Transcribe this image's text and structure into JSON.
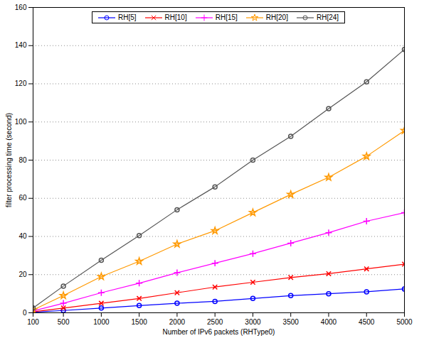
{
  "chart_data": {
    "type": "line",
    "x_label": "Number of IPv6 packets (RHType0)",
    "y_label": "filter processing time (second)",
    "x": [
      100,
      500,
      1000,
      1500,
      2000,
      2500,
      3000,
      3500,
      4000,
      4500,
      5000
    ],
    "xlim": [
      100,
      5000
    ],
    "xticks": [
      100,
      500,
      1000,
      1500,
      2000,
      2500,
      3000,
      3500,
      4000,
      4500,
      5000
    ],
    "ylim": [
      0,
      160
    ],
    "yticks": [
      0,
      20,
      40,
      60,
      80,
      100,
      120,
      140,
      160
    ],
    "grid": true,
    "legend": "top",
    "series": [
      {
        "name": "RH[5]",
        "color": "#0000ff",
        "marker": "circle",
        "values": [
          0.3,
          1.2,
          2.5,
          3.8,
          5,
          6,
          7.5,
          9,
          10,
          11,
          12.5
        ]
      },
      {
        "name": "RH[10]",
        "color": "#ff0000",
        "marker": "times",
        "values": [
          0.5,
          2.5,
          5,
          7.5,
          10.5,
          13.5,
          16,
          18.5,
          20.5,
          23,
          25.5
        ]
      },
      {
        "name": "RH[15]",
        "color": "#ff00ff",
        "marker": "plus",
        "values": [
          1,
          5,
          10.5,
          15.5,
          21,
          26,
          31,
          36.5,
          42,
          48,
          52.5
        ]
      },
      {
        "name": "RH[20]",
        "color": "#ff9900",
        "marker": "star",
        "values": [
          1.5,
          9,
          19,
          27,
          36,
          43,
          52.5,
          62,
          71,
          82,
          95.5
        ]
      },
      {
        "name": "RH[24]",
        "color": "#555555",
        "marker": "circle",
        "values": [
          2.5,
          14,
          27.5,
          40.5,
          54,
          66,
          80,
          92.5,
          107,
          121,
          138
        ]
      }
    ]
  }
}
